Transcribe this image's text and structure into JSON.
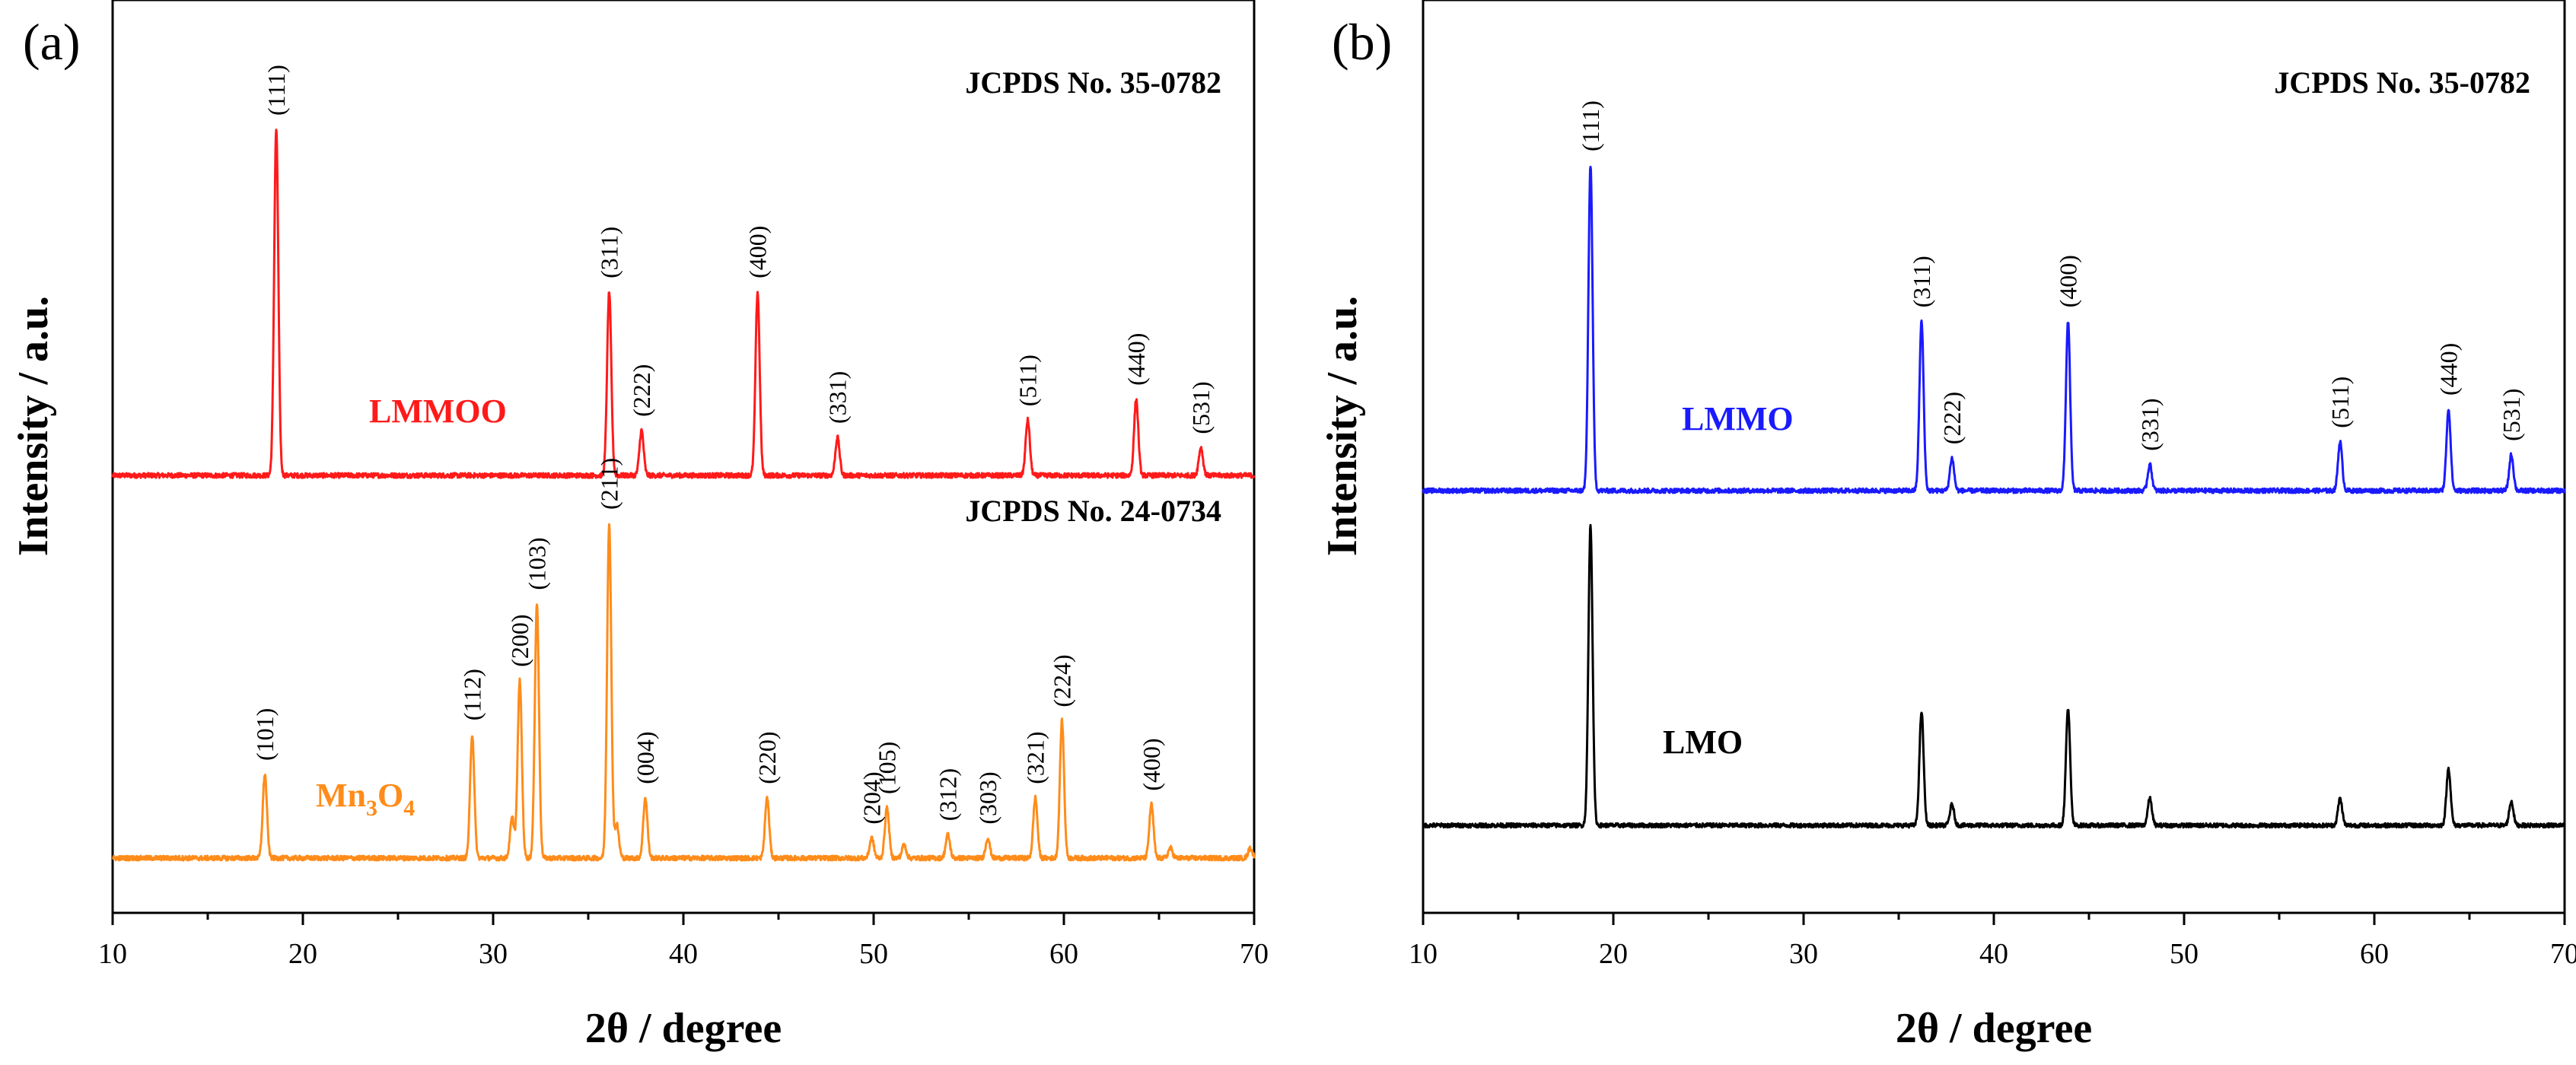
{
  "chart_data": [
    {
      "panel": "(a)",
      "type": "line",
      "xlabel": "2θ / degree",
      "ylabel": "Intensity / a.u.",
      "xlim": [
        10,
        70
      ],
      "x_ticks": [
        10,
        20,
        30,
        40,
        50,
        60,
        70
      ],
      "y_ticks": "none",
      "references": [
        {
          "series": "LMMOO",
          "text": "JCPDS No. 35-0782"
        },
        {
          "series": "Mn3O4",
          "text": "JCPDS No. 24-0734"
        }
      ],
      "series": [
        {
          "name": "LMMOO",
          "label_text": "LMMOO",
          "color": "#ff1a1a",
          "baseline": 0,
          "peaks": [
            {
              "hkl": "(111)",
              "x": 18.6,
              "h": 1.0
            },
            {
              "hkl": "(311)",
              "x": 36.1,
              "h": 0.53
            },
            {
              "hkl": "(222)",
              "x": 37.8,
              "h": 0.13
            },
            {
              "hkl": "(400)",
              "x": 43.9,
              "h": 0.53
            },
            {
              "hkl": "(331)",
              "x": 48.1,
              "h": 0.11
            },
            {
              "hkl": "(511)",
              "x": 58.1,
              "h": 0.16
            },
            {
              "hkl": "(440)",
              "x": 63.8,
              "h": 0.22
            },
            {
              "hkl": "(531)",
              "x": 67.2,
              "h": 0.08
            }
          ],
          "minor_peaks": []
        },
        {
          "name": "Mn3O4",
          "label_text": "Mn",
          "label_sub1": "3",
          "label_mid": "O",
          "label_sub2": "4",
          "color": "#ff8c1a",
          "baseline": 0,
          "peaks": [
            {
              "hkl": "(101)",
              "x": 18.0,
              "h": 0.25
            },
            {
              "hkl": "(112)",
              "x": 28.9,
              "h": 0.37
            },
            {
              "hkl": "(200)",
              "x": 31.4,
              "h": 0.53
            },
            {
              "hkl": "(103)",
              "x": 32.3,
              "h": 0.76
            },
            {
              "hkl": "(211)",
              "x": 36.1,
              "h": 1.0
            },
            {
              "hkl": "(004)",
              "x": 38.0,
              "h": 0.18
            },
            {
              "hkl": "(220)",
              "x": 44.4,
              "h": 0.18
            },
            {
              "hkl": "(204)",
              "x": 49.9,
              "h": 0.06
            },
            {
              "hkl": "(105)",
              "x": 50.7,
              "h": 0.15
            },
            {
              "hkl": "(312)",
              "x": 53.9,
              "h": 0.07
            },
            {
              "hkl": "(303)",
              "x": 56.0,
              "h": 0.06
            },
            {
              "hkl": "(321)",
              "x": 58.5,
              "h": 0.18
            },
            {
              "hkl": "(224)",
              "x": 59.9,
              "h": 0.41
            },
            {
              "hkl": "(400)",
              "x": 64.6,
              "h": 0.16
            }
          ],
          "minor_peaks": [
            {
              "x": 31.0,
              "h": 0.12
            },
            {
              "x": 36.5,
              "h": 0.1
            },
            {
              "x": 51.6,
              "h": 0.04
            },
            {
              "x": 65.6,
              "h": 0.03
            },
            {
              "x": 69.8,
              "h": 0.03
            }
          ]
        }
      ]
    },
    {
      "panel": "(b)",
      "type": "line",
      "xlabel": "2θ / degree",
      "ylabel": "Intensity / a.u.",
      "xlim": [
        10,
        70
      ],
      "x_ticks": [
        10,
        20,
        30,
        40,
        50,
        60,
        70
      ],
      "y_ticks": "none",
      "references": [
        {
          "series": "LMMO",
          "text": "JCPDS No. 35-0782"
        }
      ],
      "series": [
        {
          "name": "LMMO",
          "label_text": "LMMO",
          "color": "#1a1aff",
          "baseline": 0,
          "peaks": [
            {
              "hkl": "(111)",
              "x": 18.8,
              "h": 1.0
            },
            {
              "hkl": "(311)",
              "x": 36.2,
              "h": 0.52
            },
            {
              "hkl": "(222)",
              "x": 37.8,
              "h": 0.1
            },
            {
              "hkl": "(400)",
              "x": 43.9,
              "h": 0.52
            },
            {
              "hkl": "(331)",
              "x": 48.2,
              "h": 0.08
            },
            {
              "hkl": "(511)",
              "x": 58.2,
              "h": 0.15
            },
            {
              "hkl": "(440)",
              "x": 63.9,
              "h": 0.25
            },
            {
              "hkl": "(531)",
              "x": 67.2,
              "h": 0.11
            }
          ],
          "minor_peaks": []
        },
        {
          "name": "LMO",
          "label_text": "LMO",
          "color": "#000000",
          "baseline": 0,
          "peaks": [
            {
              "hkl": "",
              "x": 18.8,
              "h": 1.0
            },
            {
              "hkl": "",
              "x": 36.2,
              "h": 0.38
            },
            {
              "hkl": "",
              "x": 37.8,
              "h": 0.07
            },
            {
              "hkl": "",
              "x": 43.9,
              "h": 0.39
            },
            {
              "hkl": "",
              "x": 48.2,
              "h": 0.09
            },
            {
              "hkl": "",
              "x": 58.2,
              "h": 0.09
            },
            {
              "hkl": "",
              "x": 63.9,
              "h": 0.19
            },
            {
              "hkl": "",
              "x": 67.2,
              "h": 0.08
            }
          ],
          "minor_peaks": []
        }
      ]
    }
  ]
}
